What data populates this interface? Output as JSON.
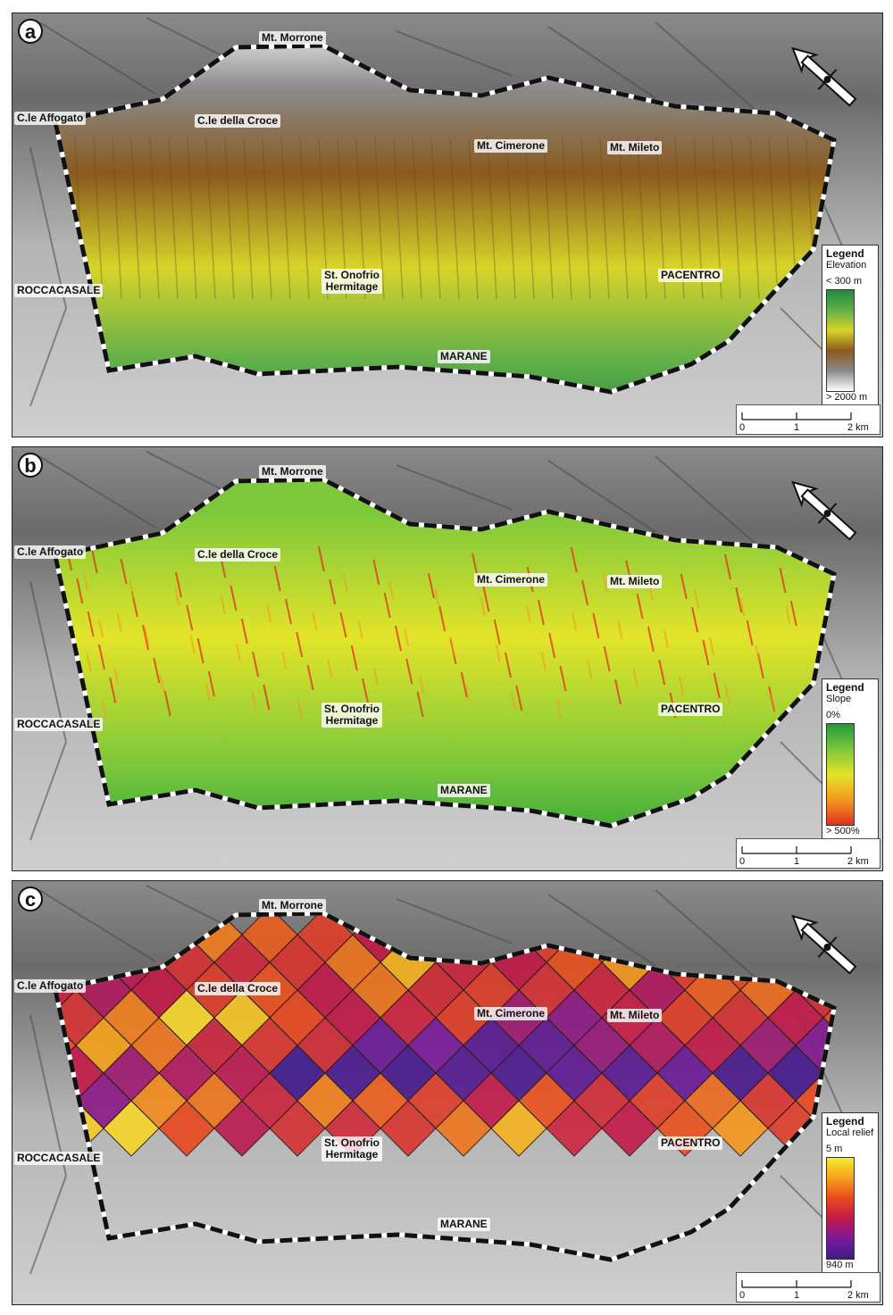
{
  "panels": [
    {
      "letter": "a",
      "legend": {
        "title": "Legend",
        "variable": "Elevation",
        "top": "< 300 m",
        "bottom": "> 2000 m",
        "stops": [
          "#1f8a3a",
          "#62b04a",
          "#d8d42a",
          "#8a5a1e",
          "#8a8a8a",
          "#ffffff"
        ]
      },
      "fill": "elevation"
    },
    {
      "letter": "b",
      "legend": {
        "title": "Legend",
        "variable": "Slope",
        "top": "0%",
        "bottom": "> 500%",
        "stops": [
          "#1f9a3a",
          "#7cc83a",
          "#e3e42a",
          "#f39a1e",
          "#e0301e"
        ]
      },
      "fill": "slope"
    },
    {
      "letter": "c",
      "legend": {
        "title": "Legend",
        "variable": "Local relief",
        "top": "5 m",
        "bottom": "940 m",
        "stops": [
          "#f8e830",
          "#f6a11c",
          "#e8491f",
          "#c21a49",
          "#7a1a9a",
          "#3a1a8a"
        ]
      },
      "fill": "relief"
    }
  ],
  "places": {
    "mt_morrone": "Mt. Morrone",
    "cle_affogato": "C.le Affogato",
    "cle_della_croce": "C.le della Croce",
    "mt_cimerone": "Mt. Cimerone",
    "mt_mileto": "Mt. Mileto",
    "roccacasale": "ROCCACASALE",
    "st_onofrio": "St. Onofrio",
    "hermitage": "Hermitage",
    "pacentro": "PACENTRO",
    "marane": "MARANE"
  },
  "scalebar": {
    "label_0": "0",
    "label_1": "1",
    "label_2": "2 km"
  },
  "colors": {
    "boundary": "#111111",
    "hillshade_dark": "#6e6e6e",
    "hillshade_light": "#c8c8c8"
  },
  "relief_levels": [
    0.75,
    0.7,
    0.45,
    0.72,
    0.65,
    0.55,
    0.4,
    0.62,
    0.48,
    0.55,
    0.68,
    0.52,
    0.6,
    0.7,
    0.92,
    0.95,
    0.6,
    0.38,
    0.5,
    0.47,
    0.52,
    0.7,
    0.85,
    0.45,
    0.4,
    0.62,
    0.78,
    0.55,
    0.6,
    0.72,
    0.88,
    0.5,
    0.42,
    0.35,
    0.4,
    0.55,
    0.62,
    0.4,
    0.7,
    0.48,
    0.55,
    0.5,
    0.45,
    0.35,
    0.65,
    0.68,
    0.48,
    0.58,
    0.5,
    0.72,
    0.95,
    0.9,
    0.6,
    0.4,
    0.45,
    0.55,
    0.3,
    0.25,
    0.42,
    0.55,
    0.5,
    0.4,
    0.6,
    0.55,
    0.62,
    0.8,
    0.7,
    0.45,
    0.52,
    0.48,
    0.15,
    0.2,
    0.1,
    0.12,
    0.28,
    0.35,
    0.4,
    0.3,
    0.22,
    0.48,
    0.4,
    0.3,
    0.35,
    0.38,
    0.02,
    0.05,
    0.04,
    0.08,
    0.06,
    0.12,
    0.1,
    0.15,
    0.05,
    0.03,
    0.1,
    0.2,
    0.18,
    0.25
  ]
}
